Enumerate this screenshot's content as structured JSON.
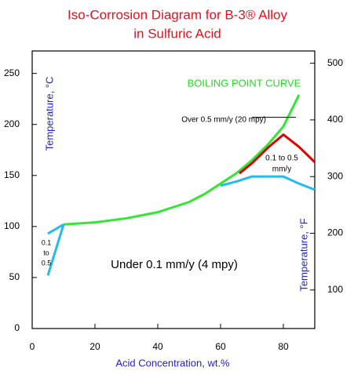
{
  "chart_data": {
    "type": "line",
    "title": [
      "Iso-Corrosion Diagram for B-3® Alloy",
      "in Sulfuric Acid"
    ],
    "x_label": "Acid Concentration, wt.%",
    "y_label": "Temperature, °C",
    "y2_label": "Temperature, °F",
    "xlim": [
      0,
      90
    ],
    "xticks": [
      0,
      20,
      40,
      60,
      80
    ],
    "ylim": [
      0,
      272
    ],
    "yticks": [
      0,
      50,
      100,
      150,
      200,
      250
    ],
    "y2lim": [
      32,
      521.6
    ],
    "y2ticks": [
      100,
      200,
      300,
      400,
      500
    ],
    "series": [
      {
        "color": "#33e633",
        "x": [
          10,
          20,
          30,
          40,
          50,
          55,
          60,
          65,
          70,
          75,
          80,
          85
        ],
        "values": [
          102,
          104,
          108,
          114,
          124,
          132,
          142,
          152,
          165,
          180,
          198,
          229
        ]
      },
      {
        "color": "#e00000",
        "x": [
          66,
          70,
          75,
          80,
          85,
          90
        ],
        "values": [
          152,
          162,
          177,
          190,
          178,
          163
        ]
      },
      {
        "color": "#22bbee",
        "x": [
          60,
          65,
          70,
          75,
          80,
          85,
          90
        ],
        "values": [
          140,
          144,
          149,
          149,
          149,
          142,
          136
        ]
      },
      {
        "color": "#22bbee",
        "x": [
          5,
          10,
          null,
          5,
          10
        ],
        "values": [
          52,
          102,
          null,
          93,
          102
        ]
      },
      {
        "color": "#000000",
        "x": [
          70,
          84
        ],
        "values": [
          207,
          207
        ]
      }
    ],
    "annotations": [
      {
        "lines": [
          "BOILING POINT CURVE"
        ],
        "color": "#22dd22"
      },
      {
        "lines": [
          "Over 0.5 mm/y (20 mpy)"
        ],
        "color": "#000000"
      },
      {
        "lines": [
          "0.1 to 0.5",
          "mm/y"
        ],
        "color": "#000000"
      },
      {
        "lines": [
          "Under 0.1 mm/y (4 mpy)"
        ],
        "color": "#000000"
      },
      {
        "lines": [
          "0.1",
          "to",
          "0.5"
        ],
        "color": "#000000"
      }
    ]
  }
}
